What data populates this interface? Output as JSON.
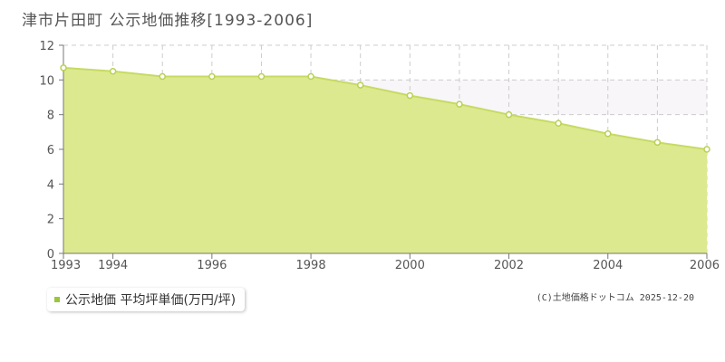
{
  "title": "津市片田町 公示地価推移[1993-2006]",
  "legend_label": "公示地価 平均坪単価(万円/坪)",
  "copyright": "(C)土地価格ドットコム 2025-12-20",
  "colors": {
    "area_fill": "#dde98f",
    "line": "#c6db62",
    "point_fill": "#ffffff",
    "point_stroke": "#b8d152",
    "grid": "#cccccc",
    "axis": "#777777",
    "shaded_band": "#f8f6f9",
    "legend_swatch": "#9bc53d"
  },
  "chart_data": {
    "type": "area",
    "title": "津市片田町 公示地価推移[1993-2006]",
    "xlabel": "",
    "ylabel": "",
    "x": [
      1993,
      1994,
      1995,
      1996,
      1997,
      1998,
      1999,
      2000,
      2001,
      2002,
      2003,
      2004,
      2005,
      2006
    ],
    "series": [
      {
        "name": "公示地価 平均坪単価(万円/坪)",
        "values": [
          10.7,
          10.5,
          10.2,
          10.2,
          10.2,
          10.2,
          9.7,
          9.1,
          8.6,
          8.0,
          7.5,
          6.9,
          6.4,
          6.0
        ]
      }
    ],
    "xlim": [
      1993,
      2006
    ],
    "ylim": [
      0,
      12
    ],
    "x_tick_labels": [
      "1993",
      "1994",
      "1996",
      "1998",
      "2000",
      "2002",
      "2004",
      "2006"
    ],
    "y_tick_labels": [
      "0",
      "2",
      "4",
      "6",
      "8",
      "10",
      "12"
    ],
    "grid": true,
    "legend_position": "bottom-left"
  }
}
